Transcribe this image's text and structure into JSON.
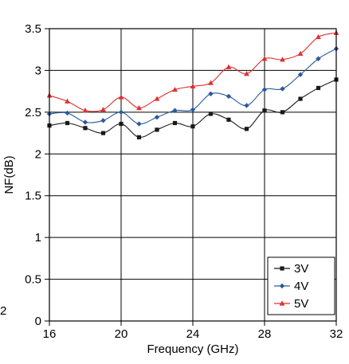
{
  "chart_data": {
    "type": "line",
    "xlabel": "Frequency (GHz)",
    "ylabel": "NF(dB)",
    "xlim": [
      16,
      32
    ],
    "ylim": [
      0,
      3.5
    ],
    "xticks": [
      16,
      20,
      24,
      28,
      32
    ],
    "yticks": [
      0,
      0.5,
      1,
      1.5,
      2,
      2.5,
      3,
      3.5
    ],
    "ytick_labels": [
      "0",
      "0.5",
      "1",
      "1.5",
      "2",
      "2.5",
      "3",
      "3.5"
    ],
    "grid": true,
    "legend_position": "bottom-right",
    "x": [
      16,
      17,
      18,
      19,
      20,
      21,
      22,
      23,
      24,
      25,
      26,
      27,
      28,
      29,
      30,
      31,
      32
    ],
    "series": [
      {
        "name": "3V",
        "color": "#1a1a1a",
        "marker": "square",
        "values": [
          2.34,
          2.37,
          2.31,
          2.25,
          2.36,
          2.2,
          2.29,
          2.37,
          2.33,
          2.48,
          2.41,
          2.3,
          2.52,
          2.5,
          2.66,
          2.79,
          2.89
        ]
      },
      {
        "name": "4V",
        "color": "#2c5aa0",
        "marker": "diamond",
        "values": [
          2.48,
          2.49,
          2.38,
          2.4,
          2.5,
          2.36,
          2.44,
          2.52,
          2.53,
          2.72,
          2.69,
          2.58,
          2.77,
          2.78,
          2.95,
          3.14,
          3.26
        ]
      },
      {
        "name": "5V",
        "color": "#e03030",
        "marker": "triangle",
        "values": [
          2.7,
          2.63,
          2.52,
          2.53,
          2.68,
          2.55,
          2.66,
          2.77,
          2.81,
          2.85,
          3.04,
          2.96,
          3.14,
          3.13,
          3.2,
          3.4,
          3.45
        ]
      }
    ]
  },
  "stray_label": "2"
}
